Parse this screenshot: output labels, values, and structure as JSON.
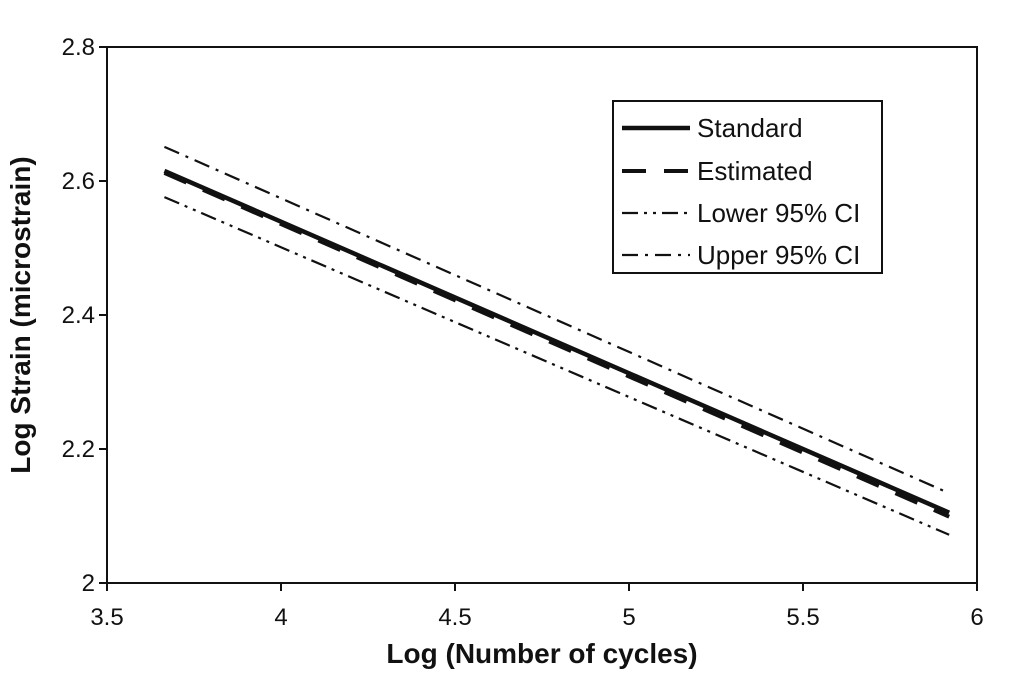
{
  "figure": {
    "background_color": "#ffffff",
    "ink_color": "#111111"
  },
  "chart_data": {
    "type": "line",
    "title": "",
    "xlabel": "Log (Number of cycles)",
    "ylabel": "Log Strain (microstrain)",
    "xlim": [
      3.5,
      6
    ],
    "ylim": [
      2.0,
      2.8
    ],
    "grid": false,
    "legend_position": "top-right",
    "x_ticks": [
      {
        "value": 3.5,
        "label": "3.5"
      },
      {
        "value": 4,
        "label": "4"
      },
      {
        "value": 4.5,
        "label": "4.5"
      },
      {
        "value": 5,
        "label": "5"
      },
      {
        "value": 5.5,
        "label": "5.5"
      },
      {
        "value": 6,
        "label": "6"
      }
    ],
    "y_ticks": [
      {
        "value": 2,
        "label": "2"
      },
      {
        "value": 2.2,
        "label": "2.2"
      },
      {
        "value": 2.4,
        "label": "2.4"
      },
      {
        "value": 2.6,
        "label": "2.6"
      },
      {
        "value": 2.8,
        "label": "2.8"
      }
    ],
    "series": [
      {
        "name": "Standard",
        "line_style": "solid",
        "points": [
          [
            3.665,
            2.615
          ],
          [
            5.92,
            2.105
          ]
        ]
      },
      {
        "name": "Estimated",
        "line_style": "dashed",
        "points": [
          [
            3.665,
            2.612
          ],
          [
            5.92,
            2.099
          ]
        ]
      },
      {
        "name": "Lower 95% CI",
        "line_style": "dash-dot-dot",
        "points": [
          [
            3.665,
            2.576
          ],
          [
            5.92,
            2.072
          ]
        ]
      },
      {
        "name": "Upper 95% CI",
        "line_style": "dash-dot",
        "points": [
          [
            3.665,
            2.651
          ],
          [
            5.92,
            2.134
          ]
        ]
      }
    ]
  }
}
